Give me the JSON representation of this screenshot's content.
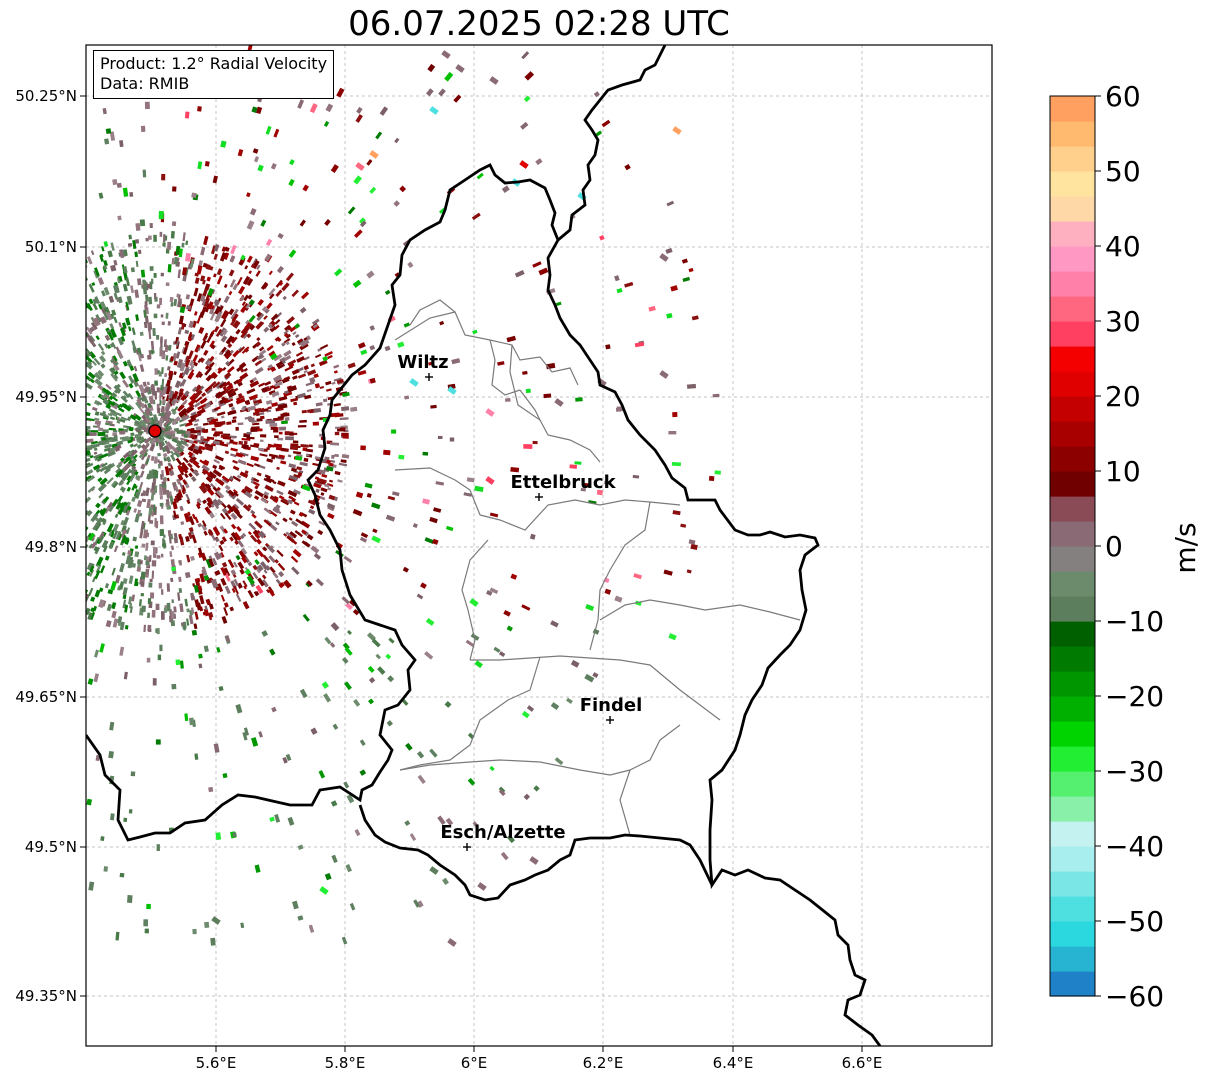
{
  "title": "06.07.2025 02:28 UTC",
  "info": {
    "product": "Product: 1.2° Radial Velocity",
    "data": "Data: RMIB"
  },
  "axes": {
    "lat_ticks": [
      "50.25°N",
      "50.1°N",
      "49.95°N",
      "49.8°N",
      "49.65°N",
      "49.5°N",
      "49.35°N"
    ],
    "lon_ticks": [
      "5.6°E",
      "5.8°E",
      "6°E",
      "6.2°E",
      "6.4°E",
      "6.6°E"
    ]
  },
  "cities": [
    {
      "name": "Wiltz"
    },
    {
      "name": "Ettelbruck"
    },
    {
      "name": "Findel"
    },
    {
      "name": "Esch/Alzette"
    }
  ],
  "colorbar": {
    "unit": "m/s",
    "ticks": [
      "60",
      "50",
      "40",
      "30",
      "20",
      "10",
      "0",
      "−10",
      "−20",
      "−30",
      "−40",
      "−50",
      "−60"
    ],
    "colors": [
      "#1f82c8",
      "#27b4d2",
      "#2cd8df",
      "#4ee0e0",
      "#7ae6e6",
      "#a8eeee",
      "#c4f2f0",
      "#88f0a8",
      "#55f070",
      "#22ee33",
      "#00d400",
      "#00b000",
      "#009600",
      "#007a00",
      "#006000",
      "#5c7e5c",
      "#6c8a6c",
      "#848080",
      "#8a6a74",
      "#8a4a56",
      "#700000",
      "#8c0000",
      "#a80000",
      "#c40000",
      "#e00000",
      "#f40000",
      "#ff4060",
      "#ff6680",
      "#ff80a8",
      "#ff99c4",
      "#ffb0c0",
      "#ffd8a8",
      "#ffe4a0",
      "#ffcf8c",
      "#ffba70",
      "#ffa060"
    ]
  },
  "radar": {
    "site": "radar-site"
  }
}
